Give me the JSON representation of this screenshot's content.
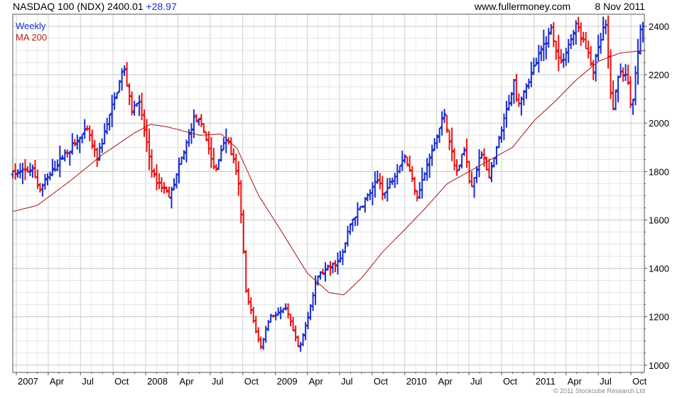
{
  "header": {
    "symbol": "NASDAQ 100 (NDX)",
    "last": "2400.01",
    "change": "+28.97",
    "site": "www.fullermoney.com",
    "date": "8 Nov 2011"
  },
  "copyright": "© 2011 Stockcube Research Ltd",
  "chart_data": {
    "type": "ohlc",
    "legend": [
      {
        "name": "Weekly",
        "color": "#1a2fd0"
      },
      {
        "name": "MA 200",
        "color": "#b22222"
      }
    ],
    "up_color": "#1a2fd0",
    "down_color": "#ee1111",
    "ma_color": "#a31515",
    "y_axis": {
      "side": "right",
      "min": 970,
      "max": 2450,
      "ticks": [
        1000,
        1200,
        1400,
        1600,
        1800,
        2000,
        2200,
        2400
      ]
    },
    "x_axis": {
      "start": "2006-12-22",
      "end": "2011-11-08",
      "ticks": [
        {
          "label": "2007",
          "date": "2007-01-01"
        },
        {
          "label": "Apr",
          "date": "2007-04-01"
        },
        {
          "label": "Jul",
          "date": "2007-07-01"
        },
        {
          "label": "Oct",
          "date": "2007-10-01"
        },
        {
          "label": "2008",
          "date": "2008-01-01"
        },
        {
          "label": "Apr",
          "date": "2008-04-01"
        },
        {
          "label": "Jul",
          "date": "2008-07-01"
        },
        {
          "label": "Oct",
          "date": "2008-10-01"
        },
        {
          "label": "2009",
          "date": "2009-01-01"
        },
        {
          "label": "Apr",
          "date": "2009-04-01"
        },
        {
          "label": "Jul",
          "date": "2009-07-01"
        },
        {
          "label": "Oct",
          "date": "2009-10-01"
        },
        {
          "label": "2010",
          "date": "2010-01-01"
        },
        {
          "label": "Apr",
          "date": "2010-04-01"
        },
        {
          "label": "Jul",
          "date": "2010-07-01"
        },
        {
          "label": "Oct",
          "date": "2010-10-01"
        },
        {
          "label": "2011",
          "date": "2011-01-01"
        },
        {
          "label": "Apr",
          "date": "2011-04-01"
        },
        {
          "label": "Jul",
          "date": "2011-07-01"
        },
        {
          "label": "Oct",
          "date": "2011-10-01"
        }
      ]
    },
    "price_path": [
      [
        "2006-12-22",
        1790
      ],
      [
        "2007-02-15",
        1810
      ],
      [
        "2007-03-08",
        1725
      ],
      [
        "2007-05-10",
        1860
      ],
      [
        "2007-07-20",
        1970
      ],
      [
        "2007-08-16",
        1850
      ],
      [
        "2007-10-01",
        2080
      ],
      [
        "2007-10-31",
        2230
      ],
      [
        "2007-11-26",
        2040
      ],
      [
        "2007-12-10",
        2110
      ],
      [
        "2008-01-22",
        1780
      ],
      [
        "2008-03-10",
        1700
      ],
      [
        "2008-05-19",
        2030
      ],
      [
        "2008-06-16",
        1960
      ],
      [
        "2008-07-15",
        1790
      ],
      [
        "2008-08-11",
        1950
      ],
      [
        "2008-09-01",
        1870
      ],
      [
        "2008-09-22",
        1720
      ],
      [
        "2008-10-10",
        1300
      ],
      [
        "2008-11-20",
        1070
      ],
      [
        "2008-12-15",
        1200
      ],
      [
        "2009-02-01",
        1230
      ],
      [
        "2009-03-09",
        1060
      ],
      [
        "2009-05-01",
        1370
      ],
      [
        "2009-07-06",
        1440
      ],
      [
        "2009-08-01",
        1590
      ],
      [
        "2009-10-20",
        1770
      ],
      [
        "2009-11-02",
        1700
      ],
      [
        "2009-12-31",
        1870
      ],
      [
        "2010-02-05",
        1700
      ],
      [
        "2010-04-23",
        2040
      ],
      [
        "2010-05-25",
        1790
      ],
      [
        "2010-06-21",
        1900
      ],
      [
        "2010-07-05",
        1730
      ],
      [
        "2010-08-09",
        1890
      ],
      [
        "2010-08-27",
        1770
      ],
      [
        "2010-11-05",
        2170
      ],
      [
        "2010-11-16",
        2080
      ],
      [
        "2011-02-18",
        2390
      ],
      [
        "2011-03-16",
        2240
      ],
      [
        "2011-05-02",
        2410
      ],
      [
        "2011-06-17",
        2220
      ],
      [
        "2011-07-21",
        2420
      ],
      [
        "2011-08-09",
        2040
      ],
      [
        "2011-08-31",
        2230
      ],
      [
        "2011-09-20",
        2180
      ],
      [
        "2011-10-04",
        2050
      ],
      [
        "2011-10-27",
        2390
      ],
      [
        "2011-11-08",
        2400
      ]
    ],
    "ma200_path": [
      [
        "2006-12-22",
        1635
      ],
      [
        "2007-03-01",
        1660
      ],
      [
        "2007-06-01",
        1760
      ],
      [
        "2007-09-01",
        1870
      ],
      [
        "2007-12-01",
        1960
      ],
      [
        "2008-01-14",
        1995
      ],
      [
        "2008-03-01",
        1985
      ],
      [
        "2008-06-01",
        1950
      ],
      [
        "2008-08-01",
        1955
      ],
      [
        "2008-09-15",
        1895
      ],
      [
        "2008-11-15",
        1700
      ],
      [
        "2009-01-15",
        1560
      ],
      [
        "2009-04-01",
        1380
      ],
      [
        "2009-06-01",
        1300
      ],
      [
        "2009-07-13",
        1290
      ],
      [
        "2009-09-01",
        1360
      ],
      [
        "2009-11-01",
        1470
      ],
      [
        "2010-01-01",
        1560
      ],
      [
        "2010-03-01",
        1650
      ],
      [
        "2010-05-01",
        1750
      ],
      [
        "2010-08-01",
        1825
      ],
      [
        "2010-11-01",
        1900
      ],
      [
        "2011-01-01",
        2010
      ],
      [
        "2011-03-01",
        2090
      ],
      [
        "2011-05-01",
        2180
      ],
      [
        "2011-07-01",
        2255
      ],
      [
        "2011-09-01",
        2290
      ],
      [
        "2011-11-08",
        2300
      ]
    ]
  }
}
